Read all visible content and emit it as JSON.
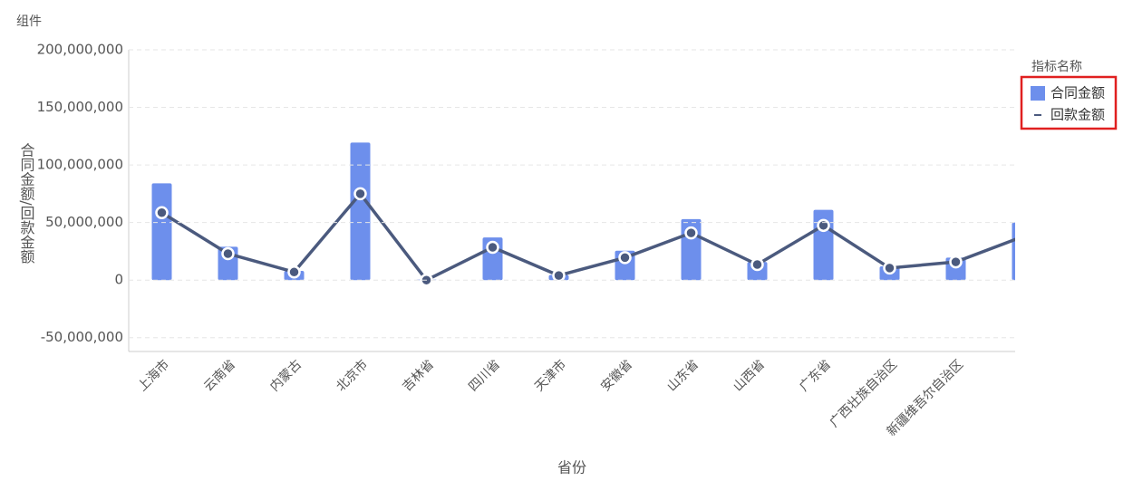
{
  "header": {
    "title": "组件"
  },
  "chart_data": {
    "type": "bar-line",
    "categories": [
      "上海市",
      "云南省",
      "内蒙古",
      "北京市",
      "吉林省",
      "四川省",
      "天津市",
      "安徽省",
      "山东省",
      "山西省",
      "广东省",
      "广西壮族自治区",
      "新疆维吾尔自治区",
      null
    ],
    "series": [
      {
        "name": "合同金额",
        "type": "bar",
        "color": "#6d8fec",
        "values": [
          84000000,
          29000000,
          8000000,
          119500000,
          500000,
          37000000,
          4500000,
          25500000,
          53000000,
          15800000,
          61000000,
          12000000,
          19500000,
          50000000
        ]
      },
      {
        "name": "回款金额",
        "type": "line",
        "color": "#4b5a7e",
        "values": [
          58600000,
          23000000,
          7000000,
          75000000,
          0,
          28500000,
          4000000,
          19500000,
          41000000,
          13500000,
          47500000,
          10500000,
          15800000,
          37500000
        ]
      }
    ],
    "ylim": [
      -62000000,
      200000000
    ],
    "yticks": [
      {
        "value": -50000000,
        "label": "-50,000,000"
      },
      0,
      {
        "value": 50000000,
        "label": "50,000,000"
      },
      {
        "value": 100000000,
        "label": "100,000,000"
      },
      {
        "value": 150000000,
        "label": "150,000,000"
      },
      {
        "value": 200000000,
        "label": "200,000,000"
      }
    ],
    "y_label": "合同金额/回款金额",
    "x_label": "省份",
    "legend_title": "指标名称",
    "legend": "right",
    "grid": true
  }
}
